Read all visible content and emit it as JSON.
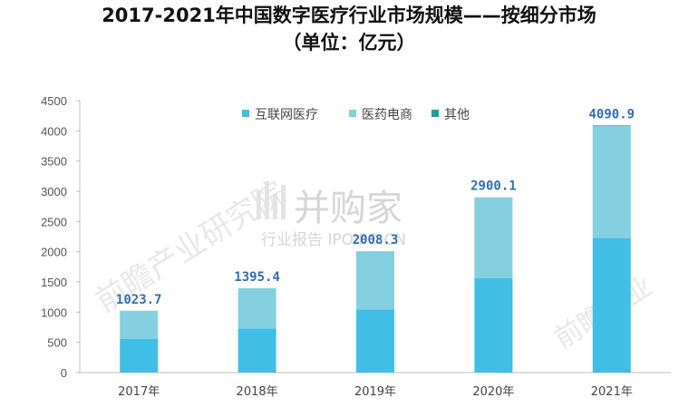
{
  "title_line1": "2017-2021年中国数字医疗行业市场规模——按细分市场",
  "title_line2": "（单位：亿元）",
  "watermark": {
    "brand": "并购家",
    "sub": "行业报告 IPOIPO.CN",
    "left": "前瞻产业研究院",
    "right": "前瞻产业"
  },
  "chart_data": {
    "type": "bar",
    "stacked": true,
    "categories": [
      "2017年",
      "2018年",
      "2019年",
      "2020年",
      "2021年"
    ],
    "series": [
      {
        "name": "互联网医疗",
        "color": "#3fbfe6",
        "values": [
          560,
          730,
          1045,
          1560,
          2230
        ]
      },
      {
        "name": "医药电商",
        "color": "#84d0e0",
        "values": [
          463.7,
          665.4,
          963.3,
          1340.1,
          1850.9
        ]
      },
      {
        "name": "其他",
        "color": "#1ba39b",
        "values": [
          0,
          0,
          0,
          0,
          10
        ]
      }
    ],
    "totals": [
      "1023.7",
      "1395.4",
      "2008.3",
      "2900.1",
      "4090.9"
    ],
    "ylim": [
      0,
      4500
    ],
    "yticks": [
      0,
      500,
      1000,
      1500,
      2000,
      2500,
      3000,
      3500,
      4000,
      4500
    ],
    "grid": false,
    "legend_position": "top-center"
  }
}
